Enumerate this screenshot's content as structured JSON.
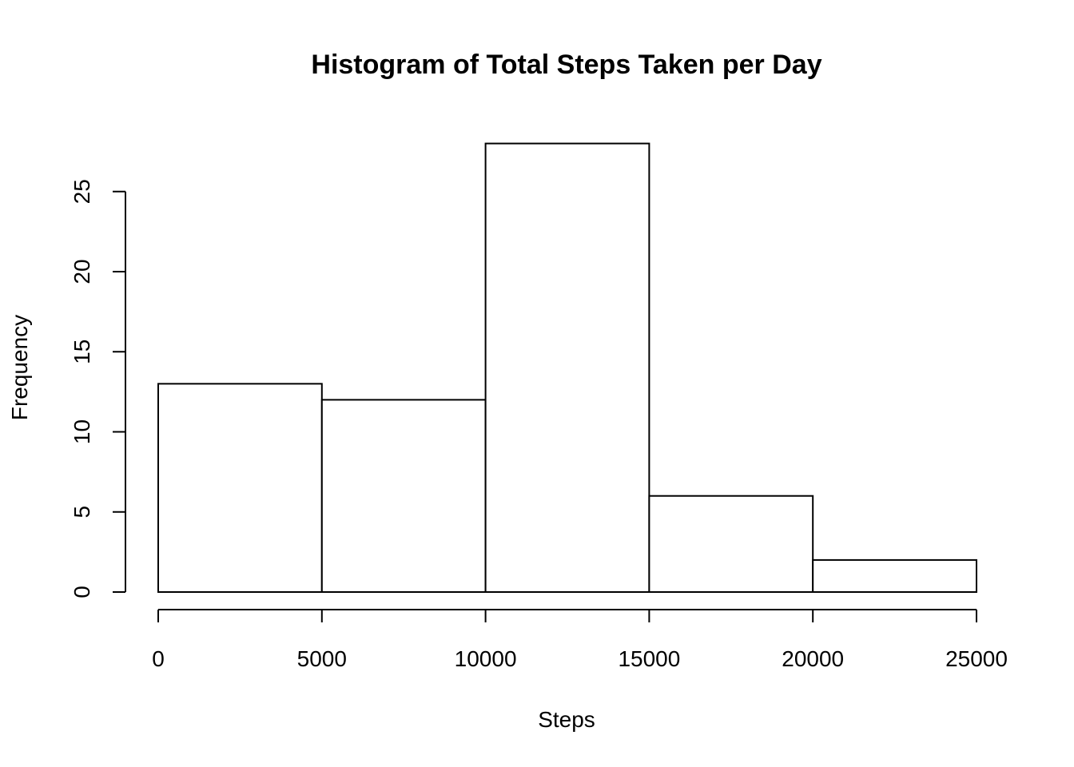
{
  "chart_data": {
    "type": "bar",
    "title": "Histogram of Total Steps Taken per Day",
    "xlabel": "Steps",
    "ylabel": "Frequency",
    "bins": [
      {
        "start": 0,
        "end": 5000,
        "count": 13
      },
      {
        "start": 5000,
        "end": 10000,
        "count": 12
      },
      {
        "start": 10000,
        "end": 15000,
        "count": 28
      },
      {
        "start": 15000,
        "end": 20000,
        "count": 6
      },
      {
        "start": 20000,
        "end": 25000,
        "count": 2
      }
    ],
    "xlim": [
      0,
      25000
    ],
    "ylim": [
      0,
      28
    ],
    "x_ticks": [
      0,
      5000,
      10000,
      15000,
      20000,
      25000
    ],
    "y_ticks": [
      0,
      5,
      10,
      15,
      20,
      25
    ],
    "bar_fill": "#ffffff",
    "bar_stroke": "#000000",
    "grid": false,
    "legend": "none"
  }
}
